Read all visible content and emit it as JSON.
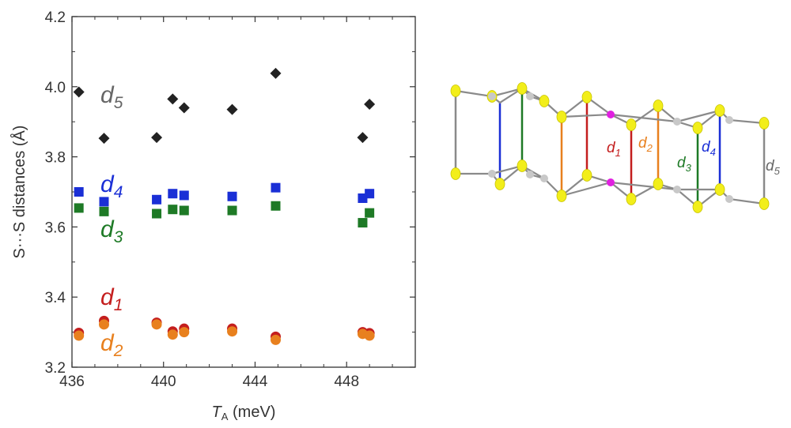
{
  "chart_data": {
    "type": "scatter",
    "ylabel": "S···S distances (Å)",
    "xlabel_main": "T",
    "xlabel_sub": "A",
    "xlabel_unit": " (meV)",
    "xlim": [
      436,
      451
    ],
    "ylim": [
      3.2,
      4.2
    ],
    "xticks": [
      436,
      440,
      444,
      448
    ],
    "yticks": [
      3.2,
      3.4,
      3.6,
      3.8,
      4.0,
      4.2
    ],
    "ytick_labels": [
      "3.2",
      "3.4",
      "3.6",
      "3.8",
      "4.0",
      "4.2"
    ],
    "series": [
      {
        "name": "d5",
        "letter": "d",
        "sub": "5",
        "marker": "diamond",
        "color": "#222222",
        "points": [
          [
            436.3,
            3.985
          ],
          [
            437.4,
            3.853
          ],
          [
            439.7,
            3.855
          ],
          [
            440.4,
            3.965
          ],
          [
            440.9,
            3.94
          ],
          [
            443.0,
            3.935
          ],
          [
            444.9,
            4.038
          ],
          [
            448.7,
            3.855
          ],
          [
            449.0,
            3.95
          ]
        ]
      },
      {
        "name": "d4",
        "letter": "d",
        "sub": "4",
        "marker": "square",
        "color": "#1a2fd6",
        "points": [
          [
            436.3,
            3.7
          ],
          [
            437.4,
            3.672
          ],
          [
            439.7,
            3.678
          ],
          [
            440.4,
            3.695
          ],
          [
            440.9,
            3.69
          ],
          [
            443.0,
            3.687
          ],
          [
            444.9,
            3.712
          ],
          [
            448.7,
            3.682
          ],
          [
            449.0,
            3.695
          ]
        ]
      },
      {
        "name": "d3",
        "letter": "d",
        "sub": "3",
        "marker": "square",
        "color": "#1e7a26",
        "points": [
          [
            436.3,
            3.654
          ],
          [
            437.4,
            3.644
          ],
          [
            439.7,
            3.638
          ],
          [
            440.4,
            3.65
          ],
          [
            440.9,
            3.647
          ],
          [
            443.0,
            3.647
          ],
          [
            444.9,
            3.66
          ],
          [
            448.7,
            3.612
          ],
          [
            449.0,
            3.64
          ]
        ]
      },
      {
        "name": "d1",
        "letter": "d",
        "sub": "1",
        "marker": "circle",
        "color": "#c41e1e",
        "points": [
          [
            436.3,
            3.298
          ],
          [
            437.4,
            3.332
          ],
          [
            439.7,
            3.327
          ],
          [
            440.4,
            3.302
          ],
          [
            440.9,
            3.31
          ],
          [
            443.0,
            3.31
          ],
          [
            444.9,
            3.287
          ],
          [
            448.7,
            3.3
          ],
          [
            449.0,
            3.297
          ]
        ]
      },
      {
        "name": "d2",
        "letter": "d",
        "sub": "2",
        "marker": "circle",
        "color": "#e8801e",
        "points": [
          [
            436.3,
            3.29
          ],
          [
            437.4,
            3.322
          ],
          [
            439.7,
            3.322
          ],
          [
            440.4,
            3.293
          ],
          [
            440.9,
            3.3
          ],
          [
            443.0,
            3.302
          ],
          [
            444.9,
            3.278
          ],
          [
            448.7,
            3.295
          ],
          [
            449.0,
            3.29
          ]
        ]
      }
    ]
  },
  "diagram": {
    "labels": [
      {
        "letter": "d",
        "sub": "1",
        "color": "#c41e1e"
      },
      {
        "letter": "d",
        "sub": "2",
        "color": "#e8801e"
      },
      {
        "letter": "d",
        "sub": "3",
        "color": "#1e7a26"
      },
      {
        "letter": "d",
        "sub": "4",
        "color": "#1a2fd6"
      },
      {
        "letter": "d",
        "sub": "5",
        "color": "#666666"
      }
    ],
    "colors": {
      "sulfur": "#f2ee1a",
      "carbon": "#c8c8c8",
      "link": "#e020e0",
      "bond": "#8a8a8a"
    }
  }
}
